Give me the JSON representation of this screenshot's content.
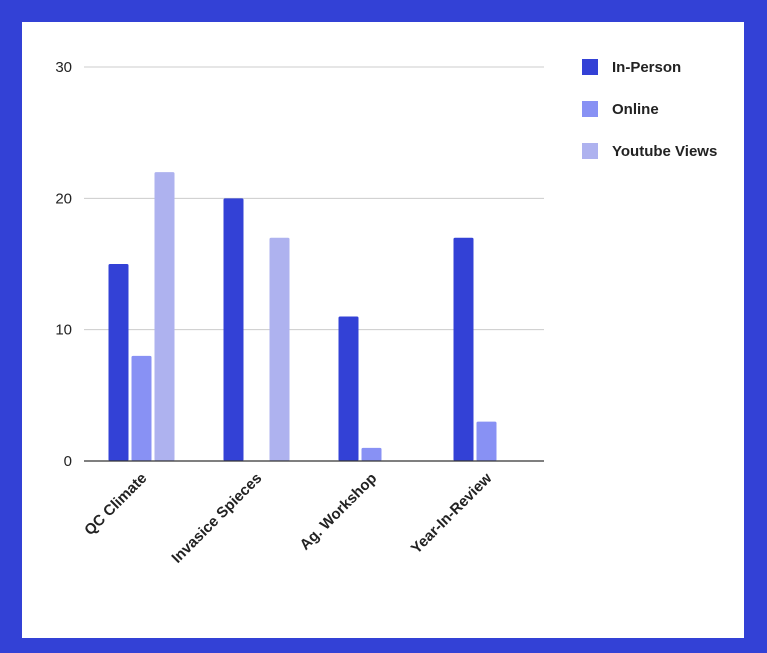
{
  "colors": {
    "frame": "#3341d6",
    "background": "#ffffff",
    "gridline": "#cccccc",
    "axis": "#333333"
  },
  "chart_data": {
    "type": "bar",
    "categories": [
      "QC Climate",
      "Invasice Spieces",
      "Ag. Workshop",
      "Year-In-Review"
    ],
    "series": [
      {
        "name": "In-Person",
        "color": "#3341d6",
        "values": [
          15,
          20,
          11,
          17
        ]
      },
      {
        "name": "Online",
        "color": "#8891f4",
        "values": [
          8,
          0,
          1,
          3
        ]
      },
      {
        "name": "Youtube Views",
        "color": "#aeb2ef",
        "values": [
          22,
          17,
          0,
          0
        ]
      }
    ],
    "title": "",
    "xlabel": "",
    "ylabel": "",
    "ylim": [
      0,
      30
    ],
    "yticks": [
      0,
      10,
      20,
      30
    ],
    "grid": true,
    "legend": "right"
  }
}
